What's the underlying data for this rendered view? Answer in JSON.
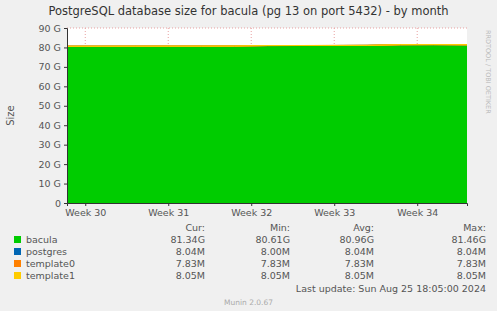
{
  "chart_data": {
    "type": "area",
    "title": "PostgreSQL database size for bacula (pg 13 on port 5432) - by month",
    "y_label": "Size",
    "stacked": true,
    "grid": true,
    "x": [
      29.78,
      30.2,
      30.6,
      31.0,
      31.4,
      31.8,
      32.2,
      32.6,
      33.0,
      33.4,
      33.8,
      34.2,
      34.6
    ],
    "xlim": [
      29.78,
      34.6
    ],
    "xticks": [
      {
        "value": 30,
        "label": "Week 30"
      },
      {
        "value": 31,
        "label": "Week 31"
      },
      {
        "value": 32,
        "label": "Week 32"
      },
      {
        "value": 33,
        "label": "Week 33"
      },
      {
        "value": 34,
        "label": "Week 34"
      }
    ],
    "ylim": [
      0,
      90
    ],
    "yticks": [
      0,
      {
        "value": 10,
        "label": "10 G"
      },
      {
        "value": 20,
        "label": "20 G"
      },
      {
        "value": 30,
        "label": "30 G"
      },
      {
        "value": 40,
        "label": "40 G"
      },
      {
        "value": 50,
        "label": "50 G"
      },
      {
        "value": 60,
        "label": "60 G"
      },
      {
        "value": 70,
        "label": "70 G"
      },
      {
        "value": 80,
        "label": "80 G"
      },
      {
        "value": 90,
        "label": "90 G"
      }
    ],
    "stats_columns": [
      "Cur:",
      "Min:",
      "Avg:",
      "Max:"
    ],
    "series": [
      {
        "name": "bacula",
        "color": "#00cc00",
        "stats": [
          "81.34G",
          "80.61G",
          "80.96G",
          "81.46G"
        ],
        "values": [
          80.61,
          80.62,
          80.64,
          80.65,
          80.67,
          80.7,
          80.95,
          80.98,
          81.0,
          81.05,
          81.38,
          81.43,
          81.34
        ]
      },
      {
        "name": "postgres",
        "color": "#0066b3",
        "stats": [
          "8.04M",
          "8.00M",
          "8.04M",
          "8.04M"
        ],
        "values": [
          0.00804,
          0.00804,
          0.00804,
          0.00804,
          0.00804,
          0.00804,
          0.00804,
          0.00804,
          0.00804,
          0.00804,
          0.00804,
          0.00804,
          0.00804
        ]
      },
      {
        "name": "template0",
        "color": "#ff8000",
        "stats": [
          "7.83M",
          "7.83M",
          "7.83M",
          "7.83M"
        ],
        "values": [
          0.00783,
          0.00783,
          0.00783,
          0.00783,
          0.00783,
          0.00783,
          0.00783,
          0.00783,
          0.00783,
          0.00783,
          0.00783,
          0.00783,
          0.00783
        ]
      },
      {
        "name": "template1",
        "color": "#ffcc00",
        "stats": [
          "8.05M",
          "8.05M",
          "8.05M",
          "8.05M"
        ],
        "values": [
          0.00805,
          0.00805,
          0.00805,
          0.00805,
          0.00805,
          0.00805,
          0.00805,
          0.00805,
          0.00805,
          0.00805,
          0.00805,
          0.00805,
          0.00805
        ]
      }
    ],
    "annotations": [
      "Last update: Sun Aug 25 18:05:00 2024",
      "Munin 2.0.67",
      "RRDTOOL / TOBI OETIKER"
    ]
  }
}
